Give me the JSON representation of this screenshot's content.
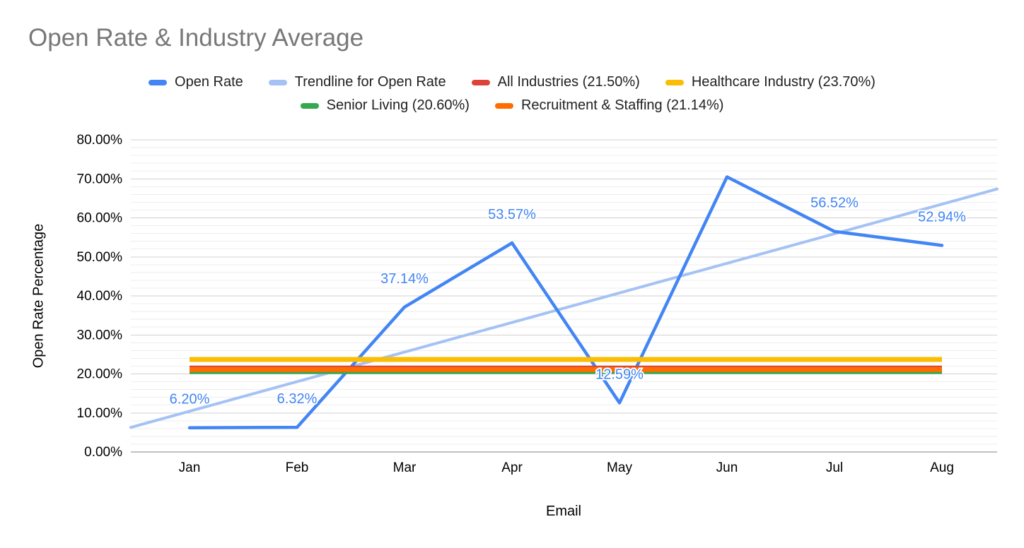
{
  "chart_data": {
    "type": "line",
    "title": "Open Rate & Industry Average",
    "xlabel": "Email",
    "ylabel": "Open Rate Percentage",
    "categories": [
      "Jan",
      "Feb",
      "Mar",
      "Apr",
      "May",
      "Jun",
      "Jul",
      "Aug"
    ],
    "ylim": [
      0,
      80
    ],
    "yticks": {
      "values": [
        0,
        10,
        20,
        30,
        40,
        50,
        60,
        70,
        80
      ],
      "labels": [
        "0.00%",
        "10.00%",
        "20.00%",
        "30.00%",
        "40.00%",
        "50.00%",
        "60.00%",
        "70.00%",
        "80.00%"
      ]
    },
    "grid": {
      "show": true,
      "minor_step": 2,
      "major_step": 10,
      "minor_color": "#ededed",
      "major_color": "#d0d0d0",
      "axis_color": "#808080"
    },
    "series": [
      {
        "name": "Open Rate",
        "kind": "line",
        "color": "#4285f4",
        "label_color": "#4285f4",
        "values": [
          6.2,
          6.32,
          37.14,
          53.57,
          12.59,
          70.5,
          56.52,
          52.94
        ],
        "point_labels": [
          "6.20%",
          "6.32%",
          "37.14%",
          "53.57%",
          "12.59%",
          null,
          "56.52%",
          "52.94%"
        ]
      },
      {
        "name": "Trendline for Open Rate",
        "kind": "trendline",
        "color": "#a4c2f4",
        "start_value": 6.3,
        "end_value": 67.4
      },
      {
        "name": "All Industries (21.50%)",
        "kind": "hline",
        "color": "#db4437",
        "value": 21.5
      },
      {
        "name": "Healthcare Industry (23.70%)",
        "kind": "hline",
        "color": "#fbbc04",
        "value": 23.7
      },
      {
        "name": "Senior Living (20.60%)",
        "kind": "hline",
        "color": "#34a853",
        "value": 20.6
      },
      {
        "name": "Recruitment & Staffing (21.14%)",
        "kind": "hline",
        "color": "#ff6d01",
        "value": 21.14
      }
    ],
    "legend": {
      "position": "top",
      "rows": [
        [
          "Open Rate",
          "Trendline for Open Rate",
          "All Industries (21.50%)",
          "Healthcare Industry (23.70%)"
        ],
        [
          "Senior Living (20.60%)",
          "Recruitment & Staffing (21.14%)"
        ]
      ]
    }
  }
}
